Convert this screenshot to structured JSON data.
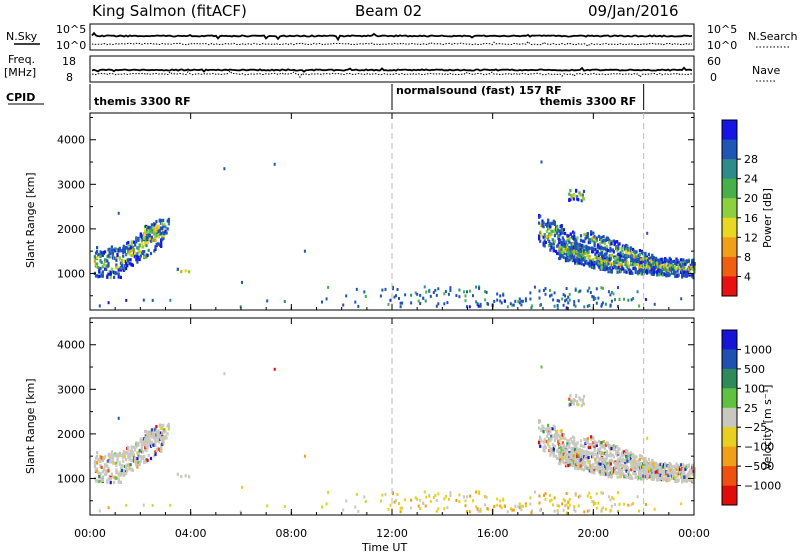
{
  "header": {
    "station": "King Salmon (fitACF)",
    "beam": "Beam 02",
    "date": "09/Jan/2016"
  },
  "strip_labels": {
    "nsky": "N.Sky",
    "freq": "Freq.",
    "freq_unit": "[MHz]",
    "cpid": "CPID",
    "nsearch": "N.Search",
    "nave": "Nave",
    "nsky_ticks": [
      "10^5",
      "10^0"
    ],
    "nsearch_ticks": [
      "10^5",
      "10^0"
    ],
    "freq_ticks": [
      "18",
      "8"
    ],
    "nave_ticks": [
      "60",
      "0"
    ]
  },
  "cpid_segments": [
    {
      "start_h": 0,
      "label": "themis 3300 RF"
    },
    {
      "start_h": 12,
      "label": "normalsound (fast) 157 RF"
    },
    {
      "start_h": 22,
      "label": "themis 3300 RF"
    }
  ],
  "chart_data": [
    {
      "type": "heatmap",
      "name": "power",
      "ylabel": "Slant Range [km]",
      "yticks": [
        1000,
        2000,
        3000,
        4000
      ],
      "ylim": [
        180,
        4600
      ],
      "xlim_hours": [
        0,
        24
      ],
      "colorbar": {
        "label": "Power [dB]",
        "ticks": [
          "4",
          "8",
          "12",
          "16",
          "20",
          "24",
          "28"
        ],
        "colors": [
          "#1515e6",
          "#1f55b4",
          "#2f8a8a",
          "#48b048",
          "#8cd040",
          "#e8d820",
          "#f0a018",
          "#ee6010",
          "#e81010"
        ]
      }
    },
    {
      "type": "heatmap",
      "name": "velocity",
      "ylabel": "Slant Range [km]",
      "yticks": [
        1000,
        2000,
        3000,
        4000
      ],
      "ylim": [
        180,
        4600
      ],
      "xlim_hours": [
        0,
        24
      ],
      "xticks": [
        "00:00",
        "04:00",
        "08:00",
        "12:00",
        "16:00",
        "20:00",
        "00:00"
      ],
      "xlabel": "Time UT",
      "colorbar": {
        "label": "Velocity [m s⁻¹]",
        "ticks": [
          "1000",
          "500",
          "100",
          "25",
          "−25",
          "−100",
          "−500",
          "−1000"
        ],
        "colors": [
          "#1515d8",
          "#2050b0",
          "#2f8a5a",
          "#60c040",
          "#c8c8c0",
          "#e8d020",
          "#f0a018",
          "#ee5010",
          "#e00c0c"
        ]
      }
    }
  ]
}
